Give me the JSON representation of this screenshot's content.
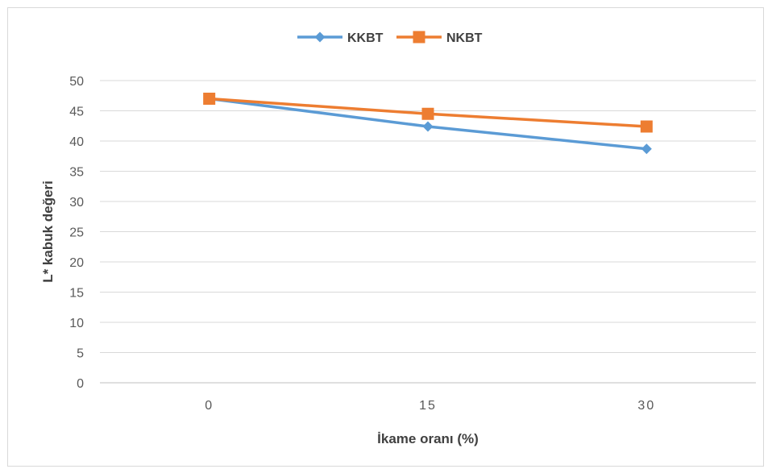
{
  "chart_data": {
    "type": "line",
    "categories": [
      "0",
      "15",
      "30"
    ],
    "series": [
      {
        "name": "KKBT",
        "values": [
          47.0,
          42.4,
          38.7
        ],
        "color": "#5b9bd5",
        "marker": "diamond"
      },
      {
        "name": "NKBT",
        "values": [
          47.0,
          44.5,
          42.4
        ],
        "color": "#ed7d31",
        "marker": "square"
      }
    ],
    "xlabel": "İkame oranı (%)",
    "ylabel": "L* kabuk değeri",
    "ylim": [
      0,
      50
    ],
    "yticks": [
      0,
      5,
      10,
      15,
      20,
      25,
      30,
      35,
      40,
      45,
      50
    ],
    "grid": true,
    "legend": "top-center"
  }
}
